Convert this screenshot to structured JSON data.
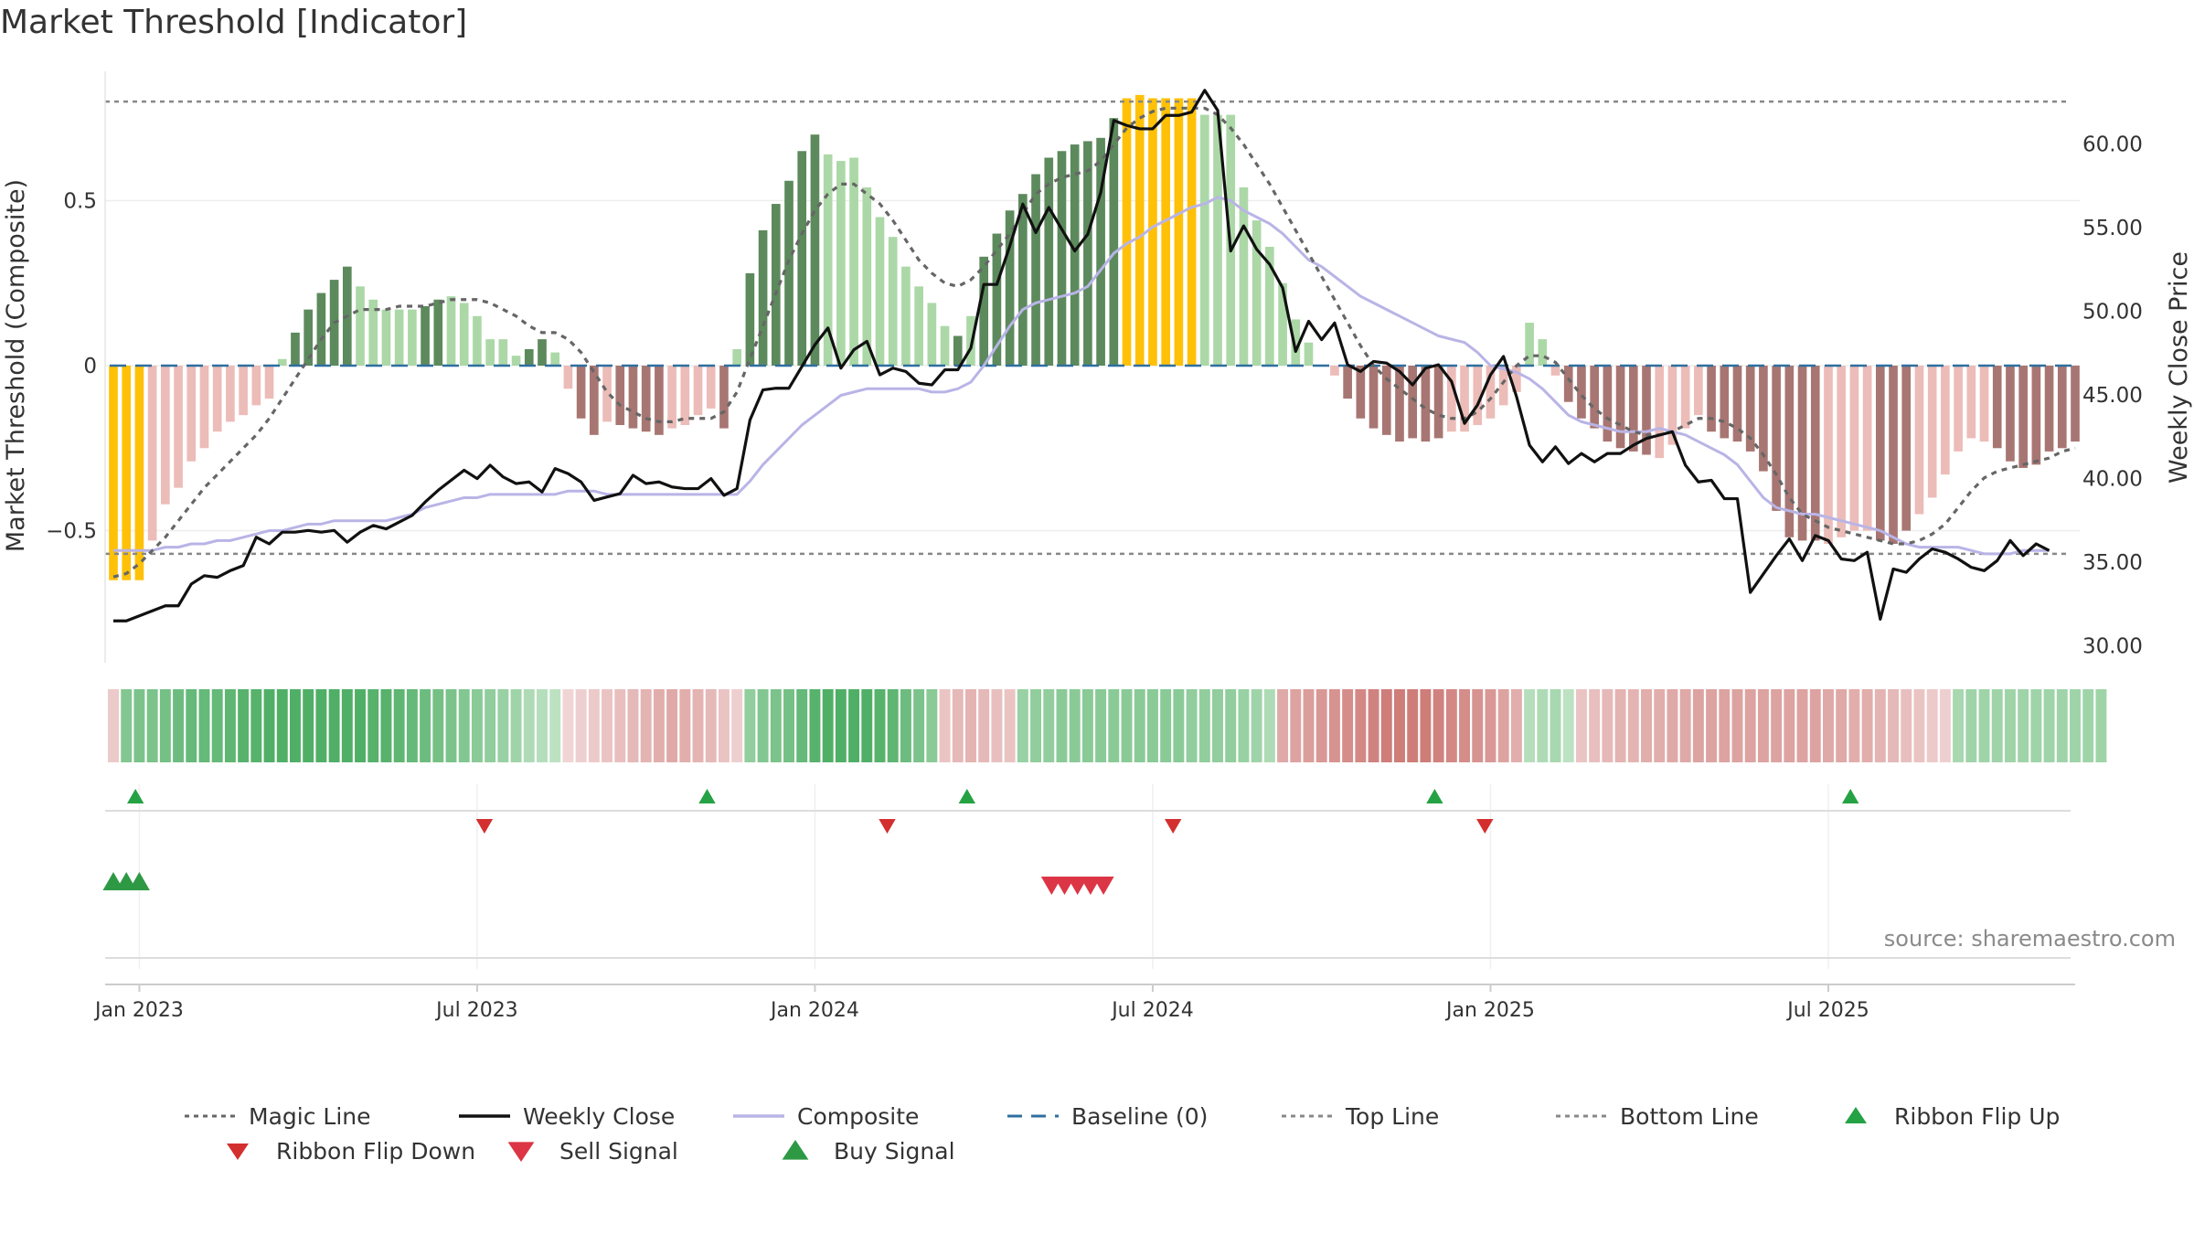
{
  "title": "Market Threshold [Indicator]",
  "source": "source: sharemaestro.com",
  "colors": {
    "bar_yellow": "#ffc107",
    "bar_dark_green": "#5c8a5c",
    "bar_light_green": "#acd8a7",
    "bar_dark_red": "#a87672",
    "bar_light_red": "#ecbcb8",
    "weekly_close": "#111111",
    "composite": "#b9b4e6",
    "magic_line": "#666666",
    "baseline": "#2f6f9f",
    "threshold_lines": "#888888",
    "buy": "#2e9944",
    "sell": "#dc3545",
    "ribbon_up": "#25a244",
    "ribbon_down": "#d32f2f"
  },
  "chart_data": {
    "type": "bar",
    "left_axis": {
      "label": "Market Threshold (Composite)",
      "range": [
        -0.9,
        0.9
      ],
      "ticks": [
        -0.5,
        0,
        0.5
      ],
      "tick_labels": [
        "−0.5",
        "0",
        "0.5"
      ]
    },
    "right_axis": {
      "label": "Weekly Close Price",
      "range": [
        29.0,
        64.5
      ],
      "ticks": [
        30,
        35,
        40,
        45,
        50,
        55,
        60
      ],
      "tick_labels": [
        "30.00",
        "35.00",
        "40.00",
        "45.00",
        "50.00",
        "55.00",
        "60.00"
      ]
    },
    "x_axis": {
      "start_date": "2022-12-19",
      "weeks": 146,
      "tick_labels": [
        "Jan 2023",
        "Jul 2023",
        "Jan 2024",
        "Jul 2024",
        "Jan 2025",
        "Jul 2025"
      ],
      "tick_weeks": [
        2,
        28,
        54,
        80,
        106,
        132
      ]
    },
    "top_line": 0.8,
    "bottom_line": -0.57,
    "baseline": 0,
    "threshold_bars": [
      -0.65,
      -0.65,
      -0.65,
      -0.53,
      -0.42,
      -0.37,
      -0.29,
      -0.25,
      -0.2,
      -0.17,
      -0.15,
      -0.12,
      -0.1,
      0.02,
      0.1,
      0.17,
      0.22,
      0.26,
      0.3,
      0.24,
      0.2,
      0.17,
      0.17,
      0.17,
      0.18,
      0.2,
      0.21,
      0.19,
      0.15,
      0.08,
      0.08,
      0.03,
      0.05,
      0.08,
      0.04,
      -0.07,
      -0.16,
      -0.21,
      -0.17,
      -0.18,
      -0.19,
      -0.2,
      -0.21,
      -0.19,
      -0.18,
      -0.15,
      -0.13,
      -0.19,
      0.05,
      0.28,
      0.41,
      0.49,
      0.56,
      0.65,
      0.7,
      0.64,
      0.62,
      0.63,
      0.54,
      0.45,
      0.39,
      0.3,
      0.24,
      0.19,
      0.12,
      0.09,
      0.15,
      0.33,
      0.4,
      0.47,
      0.52,
      0.58,
      0.63,
      0.65,
      0.67,
      0.68,
      0.69,
      0.75,
      0.81,
      0.82,
      0.81,
      0.81,
      0.81,
      0.81,
      0.76,
      0.76,
      0.76,
      0.54,
      0.44,
      0.36,
      0.25,
      0.14,
      0.07,
      0.0,
      -0.03,
      -0.1,
      -0.16,
      -0.19,
      -0.21,
      -0.23,
      -0.22,
      -0.23,
      -0.22,
      -0.2,
      -0.2,
      -0.18,
      -0.16,
      -0.12,
      -0.08,
      0.13,
      0.08,
      -0.03,
      -0.11,
      -0.16,
      -0.19,
      -0.23,
      -0.25,
      -0.26,
      -0.27,
      -0.28,
      -0.24,
      -0.19,
      -0.15,
      -0.2,
      -0.22,
      -0.23,
      -0.26,
      -0.32,
      -0.44,
      -0.52,
      -0.53,
      -0.53,
      -0.54,
      -0.52,
      -0.5,
      -0.5,
      -0.53,
      -0.54,
      -0.5,
      -0.45,
      -0.4,
      -0.33,
      -0.26,
      -0.22,
      -0.23,
      -0.25,
      -0.29,
      -0.31,
      -0.3,
      -0.26,
      -0.25,
      -0.23
    ],
    "bar_colors": [
      "Y",
      "Y",
      "Y",
      "LR",
      "LR",
      "LR",
      "LR",
      "LR",
      "LR",
      "LR",
      "LR",
      "LR",
      "LR",
      "LG",
      "DG",
      "DG",
      "DG",
      "DG",
      "DG",
      "LG",
      "LG",
      "LG",
      "LG",
      "LG",
      "DG",
      "DG",
      "LG",
      "LG",
      "LG",
      "LG",
      "LG",
      "LG",
      "DG",
      "DG",
      "LG",
      "LR",
      "DR",
      "DR",
      "LR",
      "DR",
      "DR",
      "DR",
      "DR",
      "LR",
      "LR",
      "LR",
      "LR",
      "DR",
      "LG",
      "DG",
      "DG",
      "DG",
      "DG",
      "DG",
      "DG",
      "LG",
      "LG",
      "LG",
      "LG",
      "LG",
      "LG",
      "LG",
      "LG",
      "LG",
      "LG",
      "DG",
      "LG",
      "DG",
      "DG",
      "DG",
      "DG",
      "DG",
      "DG",
      "DG",
      "DG",
      "DG",
      "DG",
      "DG",
      "Y",
      "Y",
      "Y",
      "Y",
      "Y",
      "Y",
      "LG",
      "LG",
      "LG",
      "LG",
      "LG",
      "LG",
      "LG",
      "LG",
      "LG",
      "LG",
      "LR",
      "DR",
      "DR",
      "DR",
      "DR",
      "DR",
      "DR",
      "DR",
      "DR",
      "LR",
      "LR",
      "LR",
      "LR",
      "LR",
      "LR",
      "LG",
      "LG",
      "LR",
      "DR",
      "DR",
      "DR",
      "DR",
      "DR",
      "DR",
      "DR",
      "LR",
      "LR",
      "LR",
      "LR",
      "DR",
      "DR",
      "DR",
      "DR",
      "DR",
      "DR",
      "DR",
      "DR",
      "DR",
      "LR",
      "LR",
      "LR",
      "LR",
      "DR",
      "DR",
      "DR",
      "LR",
      "LR",
      "LR",
      "LR",
      "LR",
      "LR",
      "DR",
      "DR",
      "DR",
      "DR",
      "DR",
      "DR",
      "DR"
    ],
    "series": [
      {
        "name": "Weekly Close",
        "axis": "right",
        "values": [
          31.5,
          31.5,
          31.8,
          32.1,
          32.4,
          32.4,
          33.7,
          34.2,
          34.1,
          34.5,
          34.8,
          36.5,
          36.1,
          36.8,
          36.8,
          36.9,
          36.8,
          36.9,
          36.2,
          36.8,
          37.2,
          37.0,
          37.4,
          37.8,
          38.6,
          39.3,
          39.9,
          40.5,
          40.0,
          40.8,
          40.1,
          39.7,
          39.8,
          39.2,
          40.6,
          40.3,
          39.8,
          38.7,
          38.9,
          39.1,
          40.2,
          39.7,
          39.8,
          39.5,
          39.4,
          39.4,
          40.0,
          39.0,
          39.4,
          43.5,
          45.3,
          45.4,
          45.4,
          46.7,
          48.0,
          49.0,
          46.6,
          47.7,
          48.2,
          46.2,
          46.6,
          46.4,
          45.7,
          45.6,
          46.5,
          46.5,
          47.8,
          51.6,
          51.6,
          53.9,
          56.4,
          54.7,
          56.2,
          54.9,
          53.6,
          54.6,
          57.1,
          61.4,
          61.1,
          60.9,
          60.9,
          61.7,
          61.7,
          61.9,
          63.2,
          62.0,
          53.6,
          55.1,
          53.7,
          52.8,
          51.4,
          47.6,
          49.4,
          48.3,
          49.3,
          46.8,
          46.4,
          47.0,
          46.9,
          46.4,
          45.6,
          46.6,
          46.8,
          45.8,
          43.3,
          44.4,
          46.2,
          47.3,
          44.9,
          42.0,
          41.0,
          41.9,
          40.9,
          41.5,
          41.0,
          41.5,
          41.5,
          42.0,
          42.4,
          42.6,
          42.8,
          40.8,
          39.8,
          39.9,
          38.8,
          38.8,
          33.2,
          34.3,
          35.4,
          36.4,
          35.1,
          36.6,
          36.3,
          35.2,
          35.1,
          35.6,
          31.6,
          34.6,
          34.4,
          35.2,
          35.8,
          35.6,
          35.2,
          34.7,
          34.5,
          35.1,
          36.3,
          35.4,
          36.1,
          35.7
        ]
      },
      {
        "name": "Composite",
        "axis": "left",
        "values": [
          -0.56,
          -0.56,
          -0.56,
          -0.56,
          -0.55,
          -0.55,
          -0.54,
          -0.54,
          -0.53,
          -0.53,
          -0.52,
          -0.51,
          -0.5,
          -0.5,
          -0.49,
          -0.48,
          -0.48,
          -0.47,
          -0.47,
          -0.47,
          -0.47,
          -0.47,
          -0.46,
          -0.45,
          -0.43,
          -0.42,
          -0.41,
          -0.4,
          -0.4,
          -0.39,
          -0.39,
          -0.39,
          -0.39,
          -0.39,
          -0.39,
          -0.38,
          -0.38,
          -0.38,
          -0.39,
          -0.39,
          -0.39,
          -0.39,
          -0.39,
          -0.39,
          -0.39,
          -0.39,
          -0.39,
          -0.39,
          -0.39,
          -0.35,
          -0.3,
          -0.26,
          -0.22,
          -0.18,
          -0.15,
          -0.12,
          -0.09,
          -0.08,
          -0.07,
          -0.07,
          -0.07,
          -0.07,
          -0.07,
          -0.08,
          -0.08,
          -0.07,
          -0.05,
          0.0,
          0.06,
          0.12,
          0.17,
          0.19,
          0.2,
          0.21,
          0.22,
          0.24,
          0.29,
          0.34,
          0.37,
          0.39,
          0.42,
          0.44,
          0.46,
          0.48,
          0.49,
          0.51,
          0.5,
          0.47,
          0.45,
          0.43,
          0.4,
          0.36,
          0.32,
          0.3,
          0.27,
          0.24,
          0.21,
          0.19,
          0.17,
          0.15,
          0.13,
          0.11,
          0.09,
          0.08,
          0.07,
          0.04,
          0.0,
          -0.01,
          -0.02,
          -0.04,
          -0.07,
          -0.11,
          -0.15,
          -0.17,
          -0.18,
          -0.19,
          -0.2,
          -0.2,
          -0.2,
          -0.19,
          -0.2,
          -0.21,
          -0.23,
          -0.25,
          -0.27,
          -0.3,
          -0.35,
          -0.4,
          -0.43,
          -0.44,
          -0.45,
          -0.45,
          -0.46,
          -0.47,
          -0.48,
          -0.49,
          -0.5,
          -0.52,
          -0.54,
          -0.55,
          -0.55,
          -0.55,
          -0.55,
          -0.56,
          -0.57,
          -0.57,
          -0.57,
          -0.56,
          -0.56,
          -0.56
        ]
      },
      {
        "name": "Magic Line",
        "axis": "left",
        "values": [
          -0.64,
          -0.63,
          -0.6,
          -0.56,
          -0.52,
          -0.47,
          -0.42,
          -0.37,
          -0.33,
          -0.29,
          -0.25,
          -0.21,
          -0.16,
          -0.1,
          -0.04,
          0.02,
          0.08,
          0.13,
          0.15,
          0.17,
          0.17,
          0.17,
          0.18,
          0.18,
          0.18,
          0.19,
          0.2,
          0.2,
          0.2,
          0.19,
          0.17,
          0.15,
          0.12,
          0.1,
          0.1,
          0.08,
          0.04,
          -0.02,
          -0.08,
          -0.12,
          -0.14,
          -0.16,
          -0.17,
          -0.17,
          -0.16,
          -0.16,
          -0.16,
          -0.14,
          -0.08,
          0.02,
          0.12,
          0.22,
          0.32,
          0.4,
          0.47,
          0.52,
          0.55,
          0.55,
          0.52,
          0.49,
          0.44,
          0.38,
          0.32,
          0.28,
          0.25,
          0.24,
          0.26,
          0.3,
          0.35,
          0.4,
          0.46,
          0.52,
          0.55,
          0.57,
          0.58,
          0.59,
          0.62,
          0.67,
          0.72,
          0.75,
          0.77,
          0.78,
          0.78,
          0.78,
          0.78,
          0.76,
          0.72,
          0.67,
          0.61,
          0.55,
          0.48,
          0.41,
          0.34,
          0.27,
          0.2,
          0.13,
          0.06,
          0.0,
          -0.04,
          -0.07,
          -0.1,
          -0.13,
          -0.15,
          -0.16,
          -0.16,
          -0.14,
          -0.1,
          -0.05,
          0.0,
          0.03,
          0.03,
          0.01,
          -0.04,
          -0.09,
          -0.13,
          -0.16,
          -0.18,
          -0.2,
          -0.21,
          -0.21,
          -0.2,
          -0.18,
          -0.16,
          -0.16,
          -0.17,
          -0.19,
          -0.22,
          -0.27,
          -0.33,
          -0.4,
          -0.45,
          -0.47,
          -0.49,
          -0.5,
          -0.51,
          -0.52,
          -0.53,
          -0.54,
          -0.54,
          -0.53,
          -0.51,
          -0.48,
          -0.43,
          -0.38,
          -0.34,
          -0.32,
          -0.31,
          -0.3,
          -0.29,
          -0.28,
          -0.26,
          -0.25
        ]
      }
    ],
    "ribbon_levels": [
      -0.15,
      0.55,
      0.6,
      0.6,
      0.65,
      0.7,
      0.75,
      0.75,
      0.75,
      0.8,
      0.85,
      0.85,
      0.9,
      0.9,
      0.9,
      0.9,
      0.9,
      0.9,
      0.9,
      0.9,
      0.85,
      0.85,
      0.8,
      0.75,
      0.7,
      0.65,
      0.6,
      0.55,
      0.5,
      0.45,
      0.4,
      0.35,
      0.25,
      0.2,
      0.15,
      -0.05,
      -0.1,
      -0.15,
      -0.2,
      -0.25,
      -0.3,
      -0.35,
      -0.4,
      -0.45,
      -0.4,
      -0.35,
      -0.3,
      -0.2,
      -0.1,
      0.45,
      0.55,
      0.6,
      0.65,
      0.75,
      0.85,
      0.9,
      0.9,
      0.9,
      0.9,
      0.85,
      0.8,
      0.7,
      0.6,
      0.5,
      -0.2,
      -0.3,
      -0.35,
      -0.3,
      -0.25,
      -0.2,
      0.4,
      0.45,
      0.45,
      0.5,
      0.5,
      0.5,
      0.5,
      0.5,
      0.5,
      0.5,
      0.5,
      0.5,
      0.5,
      0.45,
      0.45,
      0.45,
      0.45,
      0.4,
      0.35,
      0.25,
      -0.45,
      -0.5,
      -0.55,
      -0.6,
      -0.65,
      -0.7,
      -0.75,
      -0.8,
      -0.85,
      -0.85,
      -0.85,
      -0.85,
      -0.8,
      -0.75,
      -0.7,
      -0.65,
      -0.6,
      -0.5,
      -0.4,
      0.2,
      0.25,
      0.3,
      0.15,
      -0.2,
      -0.25,
      -0.3,
      -0.35,
      -0.35,
      -0.4,
      -0.4,
      -0.45,
      -0.45,
      -0.5,
      -0.5,
      -0.5,
      -0.5,
      -0.5,
      -0.5,
      -0.5,
      -0.5,
      -0.5,
      -0.5,
      -0.45,
      -0.45,
      -0.4,
      -0.4,
      -0.35,
      -0.3,
      -0.25,
      -0.2,
      -0.15,
      -0.1,
      0.3,
      0.35,
      0.35,
      0.35,
      0.35,
      0.35,
      0.35,
      0.35,
      0.35,
      0.35,
      0.35,
      0.35
    ],
    "ribbon_flip_up_weeks": [
      1,
      45,
      65,
      101,
      133
    ],
    "ribbon_flip_down_weeks": [
      28,
      59,
      81,
      105
    ],
    "buy_signal_weeks": [
      0,
      1,
      2
    ],
    "sell_signal_weeks": [
      72,
      73,
      74,
      75,
      76
    ],
    "legend": [
      {
        "label": "Magic Line",
        "style": "dotted",
        "color": "#666666"
      },
      {
        "label": "Weekly Close",
        "style": "solid",
        "color": "#111111"
      },
      {
        "label": "Composite",
        "style": "solid",
        "color": "#b9b4e6"
      },
      {
        "label": "Baseline (0)",
        "style": "dashed",
        "color": "#2f6f9f"
      },
      {
        "label": "Top Line",
        "style": "dotted",
        "color": "#888888"
      },
      {
        "label": "Bottom Line",
        "style": "dotted",
        "color": "#888888"
      },
      {
        "label": "Ribbon Flip Up",
        "style": "triangle-up",
        "color": "#25a244"
      },
      {
        "label": "Ribbon Flip Down",
        "style": "triangle-down",
        "color": "#d32f2f"
      },
      {
        "label": "Sell Signal",
        "style": "triangle-down",
        "color": "#dc3545"
      },
      {
        "label": "Buy Signal",
        "style": "triangle-up",
        "color": "#2e9944"
      }
    ]
  }
}
